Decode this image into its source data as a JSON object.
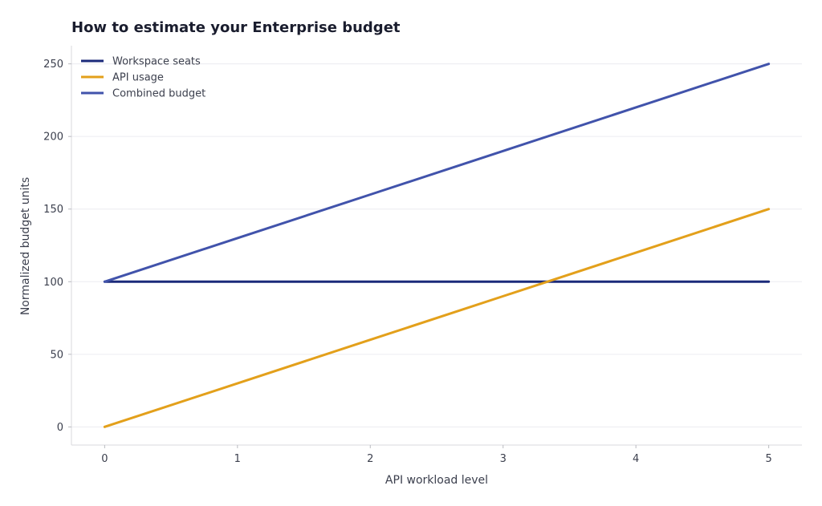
{
  "chart_data": {
    "type": "line",
    "title": "How to estimate your Enterprise budget",
    "xlabel": "API workload level",
    "ylabel": "Normalized budget units",
    "x": [
      0,
      1,
      2,
      3,
      4,
      5
    ],
    "xticks": [
      0,
      1,
      2,
      3,
      4,
      5
    ],
    "yticks": [
      0,
      50,
      100,
      150,
      200,
      250
    ],
    "xlim": [
      -0.25,
      5.25
    ],
    "ylim": [
      -12.5,
      262.5
    ],
    "grid": "horizontal",
    "legend_position": "top-left",
    "series": [
      {
        "name": "Workspace seats",
        "color": "#1b2a7a",
        "values": [
          100,
          100,
          100,
          100,
          100,
          100
        ]
      },
      {
        "name": "API usage",
        "color": "#e3a01b",
        "values": [
          0,
          30,
          60,
          90,
          120,
          150
        ]
      },
      {
        "name": "Combined budget",
        "color": "#4153ab",
        "values": [
          100,
          130,
          160,
          190,
          220,
          250
        ]
      }
    ]
  }
}
